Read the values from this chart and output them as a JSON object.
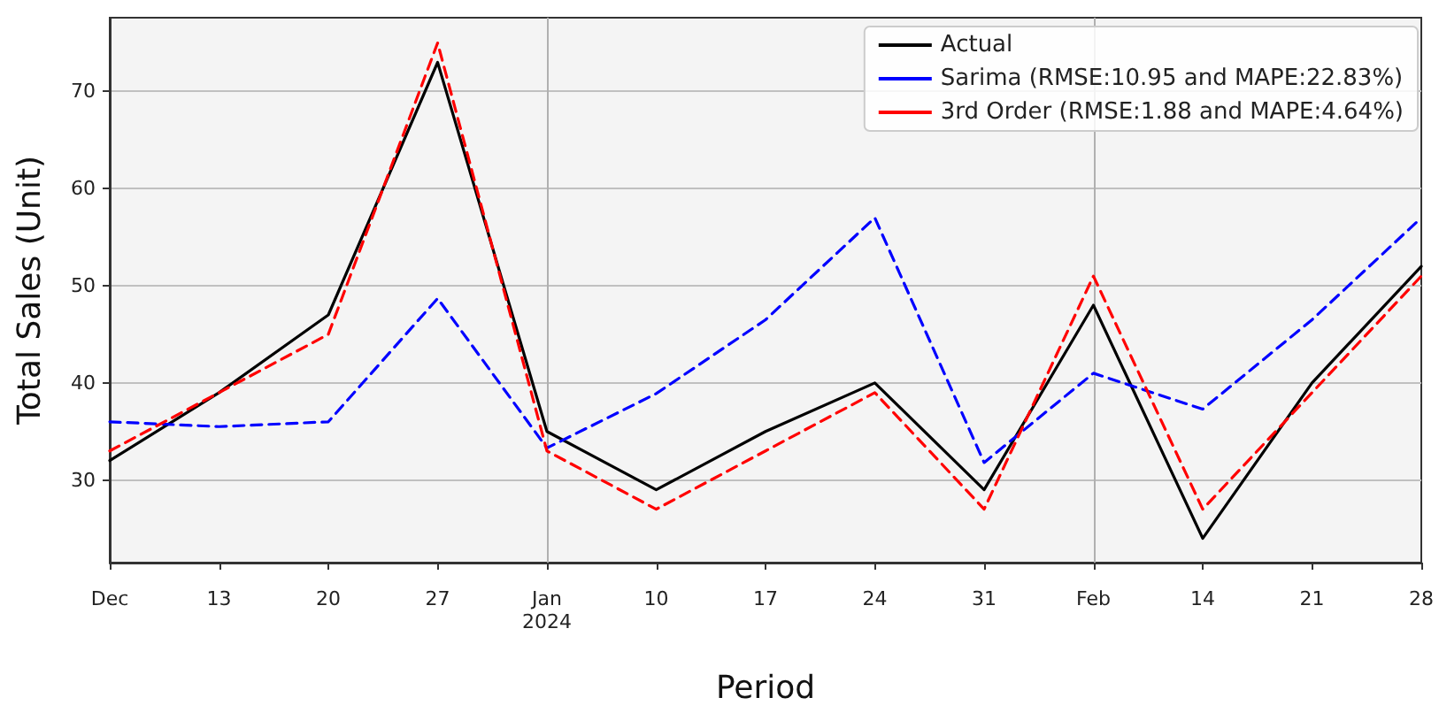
{
  "chart_data": {
    "type": "line",
    "xlabel": "Period",
    "ylabel": "Total Sales (Unit)",
    "x": [
      "2023-12-06",
      "2023-12-13",
      "2023-12-20",
      "2023-12-27",
      "2024-01-03",
      "2024-01-10",
      "2024-01-17",
      "2024-01-24",
      "2024-01-31",
      "2024-02-07",
      "2024-02-14",
      "2024-02-21",
      "2024-02-28"
    ],
    "series": [
      {
        "name": "Actual",
        "color": "#000000",
        "line_style": "solid",
        "values": [
          32,
          39,
          47,
          73,
          35,
          29,
          35,
          40,
          29,
          48,
          24,
          40,
          52
        ]
      },
      {
        "name": "Sarima (RMSE:10.95 and MAPE:22.83%)",
        "color": "#0000ff",
        "line_style": "dashed",
        "values": [
          36,
          35.5,
          36,
          48.7,
          33.3,
          38.9,
          46.5,
          57,
          31.8,
          41,
          37.3,
          46.5,
          57
        ]
      },
      {
        "name": "3rd Order (RMSE:1.88 and MAPE:4.64%)",
        "color": "#ff0000",
        "line_style": "dashed",
        "values": [
          33,
          39,
          45,
          75,
          33,
          27,
          33,
          39,
          27,
          51,
          27,
          39,
          51
        ]
      }
    ],
    "xlim": [
      "2023-12-06",
      "2024-02-28"
    ],
    "xticks": [
      {
        "value": "2023-12-06",
        "label": "Dec"
      },
      {
        "value": "2023-12-13",
        "label": "13"
      },
      {
        "value": "2023-12-20",
        "label": "20"
      },
      {
        "value": "2023-12-27",
        "label": "27"
      },
      {
        "value": "2024-01-03",
        "label": "Jan\n2024"
      },
      {
        "value": "2024-01-10",
        "label": "10"
      },
      {
        "value": "2024-01-17",
        "label": "17"
      },
      {
        "value": "2024-01-24",
        "label": "24"
      },
      {
        "value": "2024-01-31",
        "label": "31"
      },
      {
        "value": "2024-02-07",
        "label": "Feb"
      },
      {
        "value": "2024-02-14",
        "label": "14"
      },
      {
        "value": "2024-02-21",
        "label": "21"
      },
      {
        "value": "2024-02-28",
        "label": "28"
      }
    ],
    "ylim": [
      21.5,
      77.6
    ],
    "yticks": [
      30,
      40,
      50,
      60,
      70
    ],
    "grid": true,
    "legend": "top right",
    "marker": "none"
  }
}
